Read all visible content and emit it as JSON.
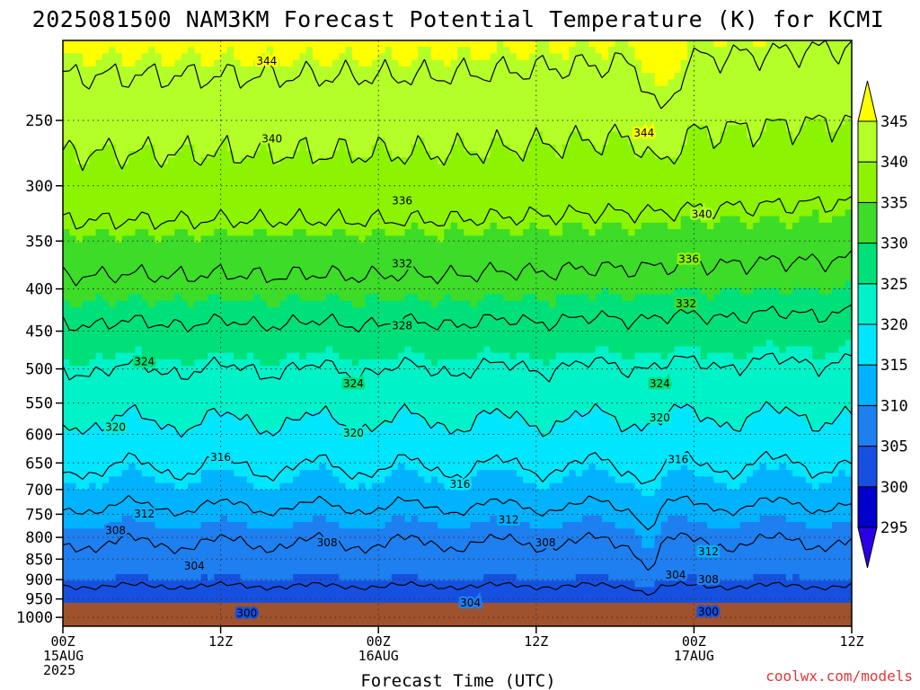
{
  "title": "2025081500 NAM3KM Forecast Potential Temperature (K) for KCMI",
  "credit": "coolwx.com/models",
  "chart_data": {
    "type": "contour",
    "title": "2025081500 NAM3KM Forecast Potential Temperature (K) for KCMI",
    "xlabel": "Forecast Time (UTC)",
    "ylabel": "",
    "y_units": "hPa",
    "y_scale": "log",
    "y_ticks": [
      250,
      300,
      350,
      400,
      450,
      500,
      550,
      600,
      650,
      700,
      750,
      800,
      850,
      900,
      950,
      1000
    ],
    "x_ticks": [
      {
        "h": 0,
        "lines": [
          "00Z",
          "15AUG",
          "2025"
        ]
      },
      {
        "h": 12,
        "lines": [
          "12Z"
        ]
      },
      {
        "h": 24,
        "lines": [
          "00Z",
          "16AUG"
        ]
      },
      {
        "h": 36,
        "lines": [
          "12Z"
        ]
      },
      {
        "h": 48,
        "lines": [
          "00Z",
          "17AUG"
        ]
      },
      {
        "h": 60,
        "lines": [
          "12Z"
        ]
      }
    ],
    "xlim_hours": [
      0,
      60
    ],
    "ylim_hpa": [
      1025,
      200
    ],
    "grid": true,
    "colorbar": {
      "levels": [
        295,
        300,
        305,
        310,
        315,
        320,
        325,
        330,
        335,
        340,
        345
      ],
      "colors": [
        "#2a00e6",
        "#0000cc",
        "#1650e0",
        "#1e7ff0",
        "#00b2ff",
        "#00e6ff",
        "#00f2c8",
        "#00e079",
        "#3cdc28",
        "#8cf400",
        "#b4ff28",
        "#ffff00"
      ]
    },
    "contour_levels": [
      300,
      304,
      308,
      312,
      316,
      320,
      324,
      328,
      332,
      336,
      340,
      344
    ],
    "contour_labels": [
      {
        "value": "344",
        "h": 15.5,
        "p": 212
      },
      {
        "value": "344",
        "h": 44.2,
        "p": 259
      },
      {
        "value": "340",
        "h": 15.9,
        "p": 263
      },
      {
        "value": "340",
        "h": 48.6,
        "p": 325
      },
      {
        "value": "336",
        "h": 25.8,
        "p": 313
      },
      {
        "value": "336",
        "h": 47.6,
        "p": 368
      },
      {
        "value": "332",
        "h": 25.8,
        "p": 373
      },
      {
        "value": "332",
        "h": 47.4,
        "p": 417
      },
      {
        "value": "328",
        "h": 25.8,
        "p": 443
      },
      {
        "value": "324",
        "h": 6.2,
        "p": 490
      },
      {
        "value": "324",
        "h": 22.1,
        "p": 521
      },
      {
        "value": "324",
        "h": 45.4,
        "p": 521
      },
      {
        "value": "320",
        "h": 4.0,
        "p": 588
      },
      {
        "value": "320",
        "h": 22.1,
        "p": 598
      },
      {
        "value": "320",
        "h": 45.4,
        "p": 573
      },
      {
        "value": "316",
        "h": 12.0,
        "p": 640
      },
      {
        "value": "316",
        "h": 30.2,
        "p": 690
      },
      {
        "value": "316",
        "h": 46.8,
        "p": 644
      },
      {
        "value": "312",
        "h": 6.2,
        "p": 749
      },
      {
        "value": "312",
        "h": 33.9,
        "p": 762
      },
      {
        "value": "312",
        "h": 49.1,
        "p": 833
      },
      {
        "value": "308",
        "h": 4.0,
        "p": 785
      },
      {
        "value": "308",
        "h": 20.1,
        "p": 812
      },
      {
        "value": "308",
        "h": 36.7,
        "p": 812
      },
      {
        "value": "308",
        "h": 49.1,
        "p": 900
      },
      {
        "value": "304",
        "h": 10.0,
        "p": 867
      },
      {
        "value": "304",
        "h": 31.0,
        "p": 960
      },
      {
        "value": "304",
        "h": 46.6,
        "p": 888
      },
      {
        "value": "300",
        "h": 14.0,
        "p": 988
      },
      {
        "value": "300",
        "h": 49.1,
        "p": 985
      }
    ]
  }
}
